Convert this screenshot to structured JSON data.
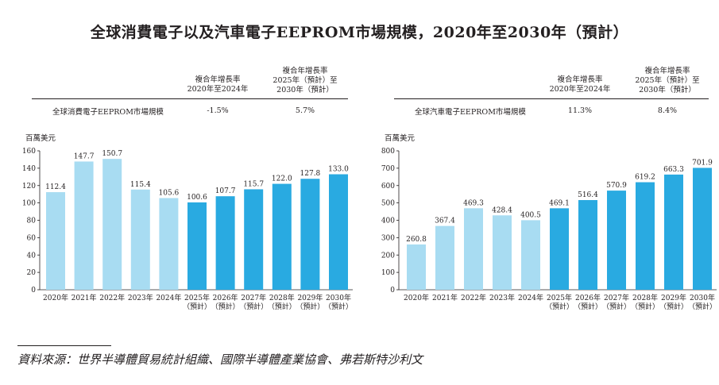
{
  "title": "全球消費電子以及汽車電子EEPROM市場規模，2020年至2030年（預計）",
  "source": "資料來源：世界半導體貿易統計組織、國際半導體產業協會、弗若斯特沙利文",
  "colors": {
    "historical": "#a8dcf2",
    "forecast": "#29aae1",
    "text": "#231f20"
  },
  "chart_data": [
    {
      "type": "bar",
      "cagr_headers": [
        "複合年增長率\n2020年至2024年",
        "複合年增長率\n2025年（預計）至\n2030年（預計）"
      ],
      "cagr_row_label": "全球消費電子EEPROM市場規模",
      "cagr_values": [
        "-1.5%",
        "5.7%"
      ],
      "unit": "百萬美元",
      "categories": [
        "2020年",
        "2021年",
        "2022年",
        "2023年",
        "2024年",
        "2025年\n（預計）",
        "2026年\n（預計）",
        "2027年\n（預計）",
        "2028年\n（預計）",
        "2029年\n（預計）",
        "2030年\n（預計）"
      ],
      "values": [
        112.4,
        147.7,
        150.7,
        115.4,
        105.6,
        100.6,
        107.7,
        115.7,
        122.0,
        127.8,
        133.0
      ],
      "labels": [
        "112.4",
        "147.7",
        "150.7",
        "115.4",
        "105.6",
        "100.6",
        "107.7",
        "115.7",
        "122.0",
        "127.8",
        "133.0"
      ],
      "yticks": [
        "0",
        "20",
        "40",
        "60",
        "80",
        "100",
        "120",
        "140",
        "160"
      ],
      "ylim": [
        0,
        160
      ],
      "forecast_from_index": 5
    },
    {
      "type": "bar",
      "cagr_headers": [
        "複合年增長率\n2020年至2024年",
        "複合年增長率\n2025年（預計）至\n2030年（預計）"
      ],
      "cagr_row_label": "全球汽車電子EEPROM市場規模",
      "cagr_values": [
        "11.3%",
        "8.4%"
      ],
      "unit": "百萬美元",
      "categories": [
        "2020年",
        "2021年",
        "2022年",
        "2023年",
        "2024年",
        "2025年\n（預計）",
        "2026年\n（預計）",
        "2027年\n（預計）",
        "2028年\n（預計）",
        "2029年\n（預計）",
        "2030年\n（預計）"
      ],
      "values": [
        260.8,
        367.4,
        469.3,
        428.4,
        400.5,
        469.1,
        516.4,
        570.9,
        619.2,
        663.3,
        701.9
      ],
      "labels": [
        "260.8",
        "367.4",
        "469.3",
        "428.4",
        "400.5",
        "469.1",
        "516.4",
        "570.9",
        "619.2",
        "663.3",
        "701.9"
      ],
      "yticks": [
        "0",
        "100",
        "200",
        "300",
        "400",
        "500",
        "600",
        "700",
        "800"
      ],
      "ylim": [
        0,
        800
      ],
      "forecast_from_index": 5
    }
  ]
}
